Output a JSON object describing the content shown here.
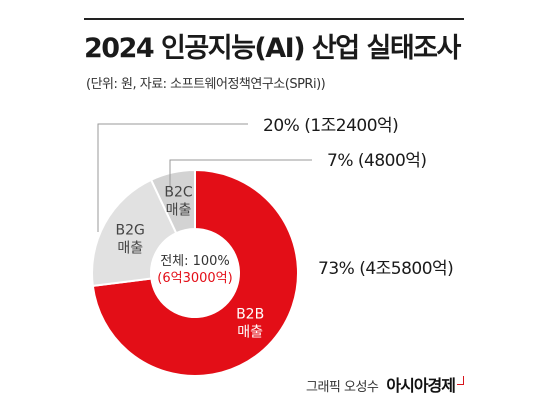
{
  "header": {
    "title": "2024 인공지능(AI) 산업 실태조사",
    "subtitle": "(단위: 원, 자료: 소프트웨어정책연구소(SPRi))"
  },
  "chart_data": {
    "type": "pie",
    "style": "donut",
    "total_label": "전체: 100%",
    "total_value": "(6억3000억)",
    "slices": [
      {
        "name_line1": "B2B",
        "name_line2": "매출",
        "value": 73,
        "callout": "73% (4조5800억)",
        "color": "#e30e17",
        "text_color": "#ffffff"
      },
      {
        "name_line1": "B2G",
        "name_line2": "매출",
        "value": 20,
        "callout": "20% (1조2400억)",
        "color": "#e1e1e1",
        "text_color": "#444444"
      },
      {
        "name_line1": "B2C",
        "name_line2": "매출",
        "value": 7,
        "callout": "7% (4800억)",
        "color": "#d3d3d3",
        "text_color": "#444444"
      }
    ]
  },
  "footer": {
    "credit": "그래픽 오성수",
    "brand": "아시아경제"
  }
}
